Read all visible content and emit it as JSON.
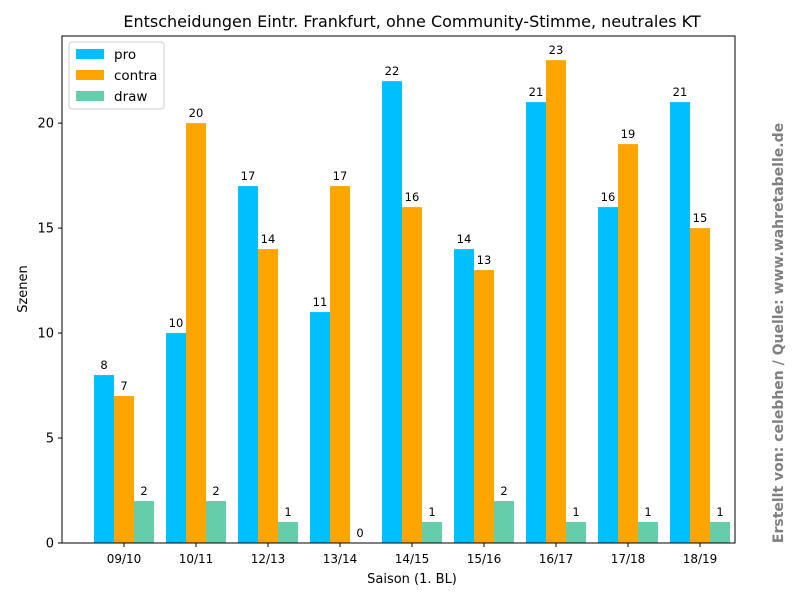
{
  "chart_data": {
    "type": "bar",
    "title": "Entscheidungen Eintr. Frankfurt, ohne Community-Stimme, neutrales KT",
    "xlabel": "Saison (1. BL)",
    "ylabel": "Szenen",
    "categories": [
      "09/10",
      "10/11",
      "12/13",
      "13/14",
      "14/15",
      "15/16",
      "16/17",
      "17/18",
      "18/19"
    ],
    "series": [
      {
        "name": "pro",
        "color": "#00bfff",
        "values": [
          8,
          10,
          17,
          11,
          22,
          14,
          21,
          16,
          21
        ]
      },
      {
        "name": "contra",
        "color": "#ffa500",
        "values": [
          7,
          20,
          14,
          17,
          16,
          13,
          23,
          19,
          15
        ]
      },
      {
        "name": "draw",
        "color": "#66cdaa",
        "values": [
          2,
          2,
          1,
          0,
          1,
          2,
          1,
          1,
          1
        ]
      }
    ],
    "ylim": [
      0,
      24.15
    ],
    "yticks": [
      0,
      5,
      10,
      15,
      20
    ],
    "grid": false,
    "legend_position": "top-left",
    "side_note": "Erstellt von: celebhen / Quelle: www.wahretabelle.de"
  }
}
